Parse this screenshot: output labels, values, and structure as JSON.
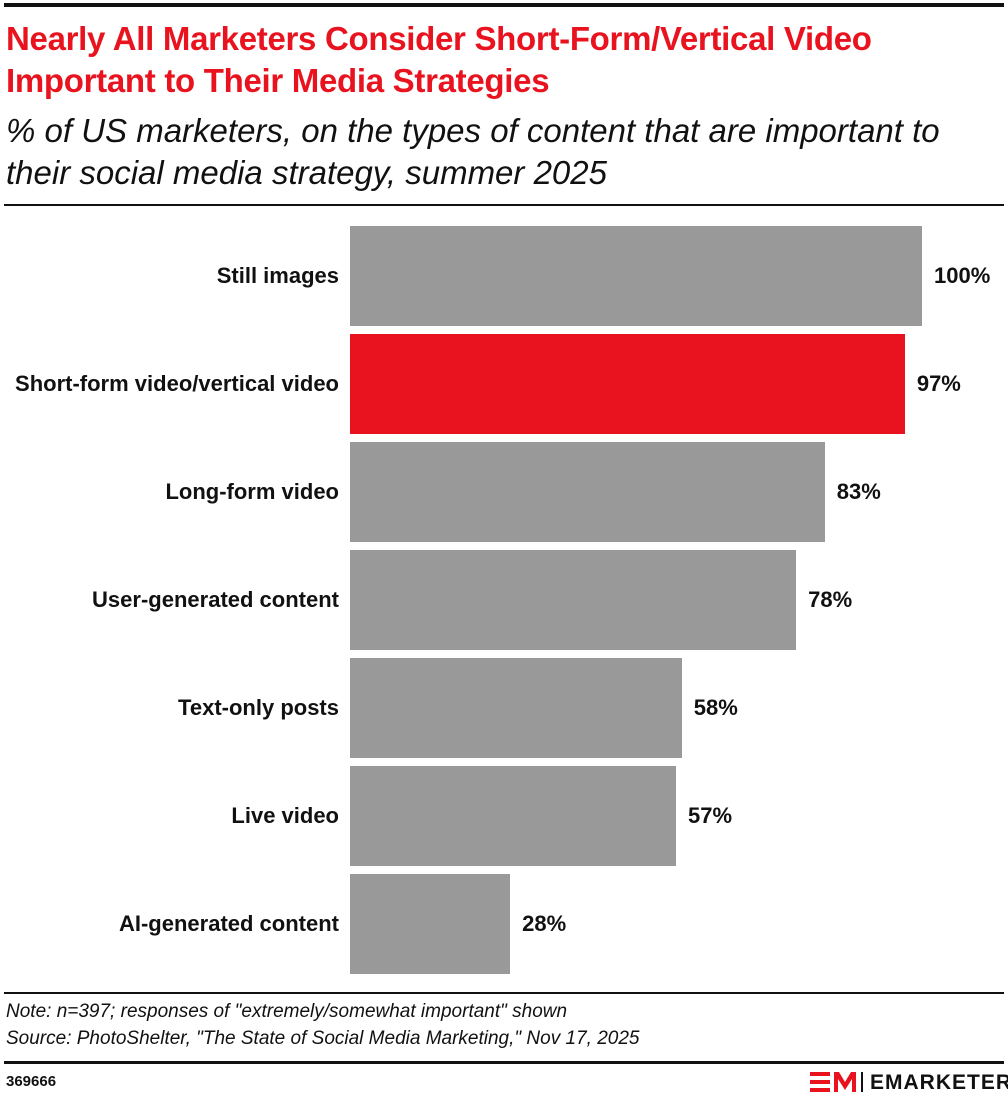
{
  "chart_data": {
    "type": "bar",
    "orientation": "horizontal",
    "title": "Nearly All Marketers Consider Short-Form/Vertical Video Important to Their Media Strategies",
    "subtitle": "% of US marketers, on the types of content that are important to their social media strategy, summer 2025",
    "categories": [
      "Still images",
      "Short-form video/vertical video",
      "Long-form video",
      "User-generated content",
      "Text-only posts",
      "Live video",
      "AI-generated content"
    ],
    "values": [
      100,
      97,
      83,
      78,
      58,
      57,
      28
    ],
    "value_labels": [
      "100%",
      "97%",
      "83%",
      "78%",
      "58%",
      "57%",
      "28%"
    ],
    "colors": [
      "#999999",
      "#e8131f",
      "#999999",
      "#999999",
      "#999999",
      "#999999",
      "#999999"
    ],
    "note": "Note: n=397; responses of \"extremely/somewhat important\" shown",
    "source": "Source: PhotoShelter, \"The State of Social Media Marketing,\" Nov 17, 2025",
    "chart_id": "369666",
    "brand": "EMARKETER"
  }
}
